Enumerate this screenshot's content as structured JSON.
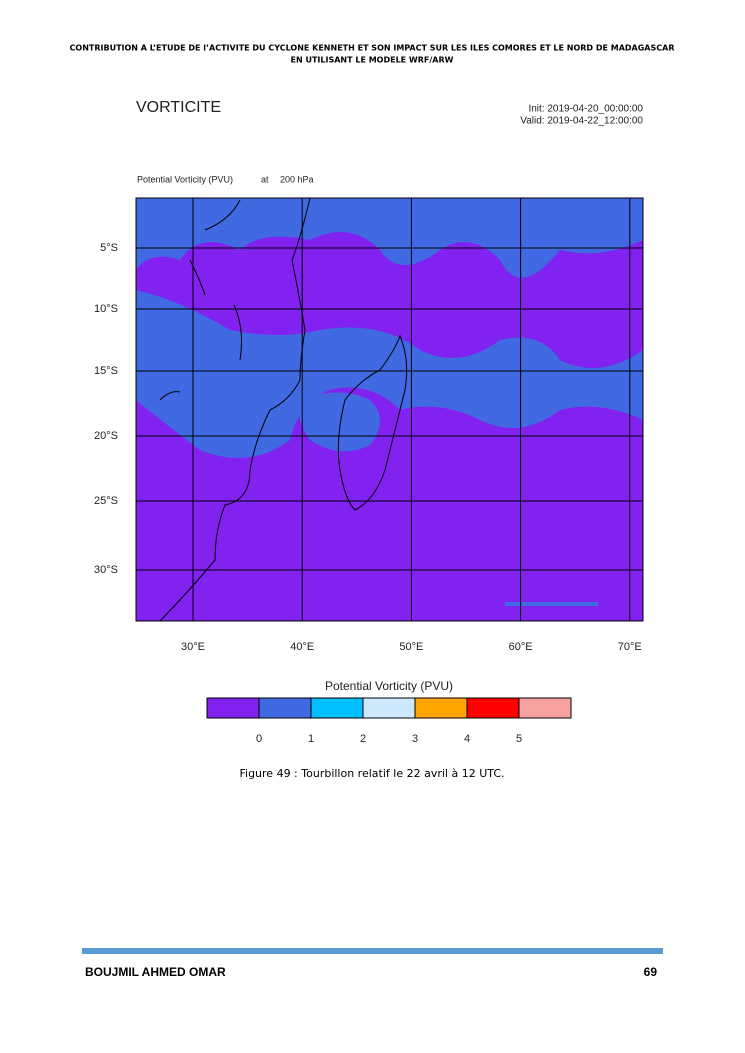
{
  "header": {
    "line1": "CONTRIBUTION A L’ETUDE DE l’ACTIVITE DU CYCLONE KENNETH ET SON IMPACT SUR LES ILES COMORES ET LE NORD DE MADAGASCAR",
    "line2": "EN UTILISANT LE MODELE WRF/ARW"
  },
  "figure": {
    "title": "VORTICITE",
    "init": "Init: 2019-04-20_00:00:00",
    "valid": "Valid: 2019-04-22_12:00:00",
    "field": "Potential Vorticity (PVU)",
    "at": "at",
    "level": "200 hPa",
    "lat_labels": [
      "5°S",
      "10°S",
      "15°S",
      "20°S",
      "25°S",
      "30°S"
    ],
    "lon_labels": [
      "30°E",
      "40°E",
      "50°E",
      "60°E",
      "70°E"
    ],
    "colorbar": {
      "title": "Potential Vorticity (PVU)",
      "levels": [
        0,
        1,
        2,
        3,
        4,
        5
      ],
      "colors": [
        "#8122f0",
        "#4169e1",
        "#00bfff",
        "#cde8fb",
        "#ffa500",
        "#ff0000",
        "#f7a1a1"
      ]
    },
    "caption": "Figure 49 : Tourbillon relatif le 22 avril à 12 UTC."
  },
  "footer": {
    "author": "BOUJMIL AHMED OMAR",
    "page": "69"
  }
}
